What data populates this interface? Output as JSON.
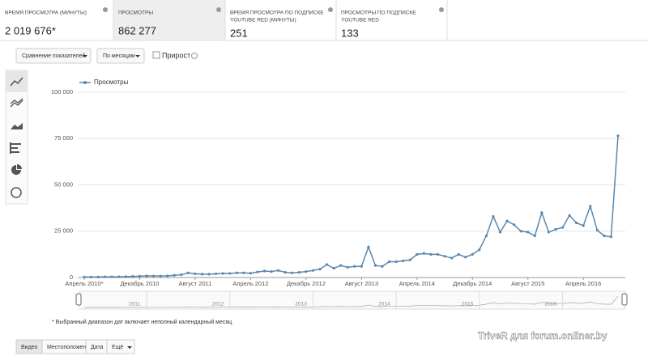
{
  "tiles": [
    {
      "label": [
        "ВРЕМЯ ПРОСМОТРА (МИНУТЫ)"
      ],
      "value": "2 019 676*"
    },
    {
      "label": [
        "ПРОСМОТРЫ"
      ],
      "value": "862 277"
    },
    {
      "label": [
        "ВРЕМЯ ПРОСМОТРА ПО ПОДПИСКЕ",
        "YOUTUBE RED (МИНУТЫ)"
      ],
      "value": "251"
    },
    {
      "label": [
        "ПРОСМОТРЫ ПО ПОДПИСКЕ",
        "YOUTUBE RED"
      ],
      "value": "133"
    }
  ],
  "controls": {
    "compare": "Сравнение показателей",
    "period": "По месяцам",
    "growth": "Прирост"
  },
  "chart_data": {
    "type": "line",
    "categories": [
      "Апрель 2010*",
      null,
      null,
      null,
      null,
      null,
      null,
      null,
      "Декабрь 2010",
      null,
      null,
      null,
      null,
      null,
      null,
      null,
      "Август 2011",
      null,
      null,
      null,
      null,
      null,
      null,
      null,
      "Апрель 2012",
      null,
      null,
      null,
      null,
      null,
      null,
      null,
      "Декабрь 2012",
      null,
      null,
      null,
      null,
      null,
      null,
      null,
      "Август 2013",
      null,
      null,
      null,
      null,
      null,
      null,
      null,
      "Апрель 2014",
      null,
      null,
      null,
      null,
      null,
      null,
      null,
      "Декабрь 2014",
      null,
      null,
      null,
      null,
      null,
      null,
      null,
      "Август 2015",
      null,
      null,
      null,
      null,
      null,
      null,
      null,
      "Апрель 2016",
      null,
      null,
      null,
      null,
      null
    ],
    "series": [
      {
        "name": "Просмотры",
        "color": "#5a87ad",
        "values": [
          300,
          300,
          300,
          400,
          400,
          400,
          500,
          600,
          700,
          900,
          800,
          800,
          900,
          1200,
          1500,
          2500,
          2000,
          1800,
          1800,
          2000,
          2200,
          2200,
          2500,
          2500,
          2300,
          3000,
          3500,
          3200,
          3800,
          2800,
          2500,
          2800,
          3200,
          3800,
          4500,
          7000,
          5000,
          6500,
          5500,
          6000,
          6000,
          16500,
          6500,
          6000,
          8500,
          8500,
          9000,
          9500,
          12500,
          13000,
          12500,
          12500,
          11500,
          10500,
          12500,
          11000,
          12500,
          15000,
          22500,
          33000,
          24500,
          30500,
          28500,
          25000,
          24500,
          22500,
          35000,
          24500,
          26000,
          27000,
          33500,
          29500,
          28000,
          38500,
          25500,
          22500,
          22000,
          76500
        ]
      }
    ],
    "ylim": [
      0,
      100000
    ],
    "yticks": [
      0,
      {
        "value": 25000,
        "label": "25 000"
      },
      {
        "value": 50000,
        "label": "50 000"
      },
      {
        "value": 75000,
        "label": "75 000"
      },
      {
        "value": 100000,
        "label": "100 000"
      }
    ],
    "grid": true
  },
  "navigator": {
    "years": [
      "2011",
      "2012",
      "2013",
      "2014",
      "2015",
      "2016"
    ]
  },
  "footnote": "* Выбранный диапазон дат включает неполный календарный месяц.",
  "tabs": [
    "Видео",
    "Местоположение",
    "Дата",
    "Ещё"
  ],
  "watermark": "TriveR для forum.onliner.by"
}
